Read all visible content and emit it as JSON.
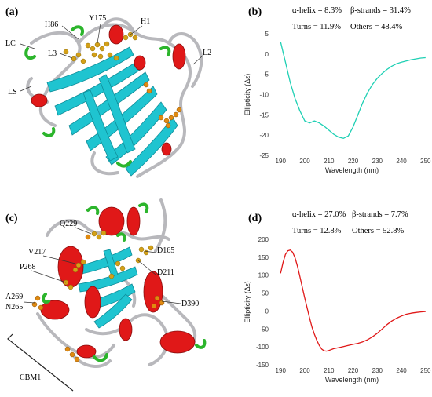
{
  "panels": {
    "a": {
      "letter": "(a)"
    },
    "b": {
      "letter": "(b)"
    },
    "c": {
      "letter": "(c)"
    },
    "d": {
      "letter": "(d)"
    }
  },
  "structure_a_labels": [
    "H86",
    "Y175",
    "H1",
    "LC",
    "L3",
    "L2",
    "LS"
  ],
  "structure_c_labels": [
    "Q229",
    "D165",
    "V217",
    "D211",
    "P268",
    "D390",
    "A269",
    "N265",
    "CBM1"
  ],
  "colors": {
    "helix": "#e01818",
    "strand": "#1fc4d0",
    "turn": "#2cb52c",
    "coil": "#b8b8bc",
    "residue": "#d4a017",
    "residue_alt": "#e08a10",
    "cd_b": "#1fd0b4",
    "cd_d": "#e01818"
  },
  "chart_data": [
    {
      "type": "line",
      "panel": "(b)",
      "annotations": [
        "α-helix = 8.3%",
        "β-strands = 31.4%",
        "Turns = 11.9%",
        "Others = 48.4%"
      ],
      "xlabel": "Wavelength (nm)",
      "ylabel": "Ellipticity (Δε)",
      "xlim": [
        187,
        252
      ],
      "ylim": [
        -25,
        5
      ],
      "xticks": [
        190,
        200,
        210,
        220,
        230,
        240,
        250
      ],
      "yticks": [
        5,
        0,
        -5,
        -10,
        -15,
        -20,
        -25
      ],
      "series": [
        {
          "x": [
            190,
            192,
            194,
            196,
            198,
            200,
            202,
            204,
            206,
            208,
            210,
            212,
            214,
            216,
            218,
            220,
            222,
            224,
            226,
            228,
            230,
            232,
            234,
            236,
            238,
            240,
            244,
            248,
            250
          ],
          "y": [
            3,
            -2,
            -7,
            -11,
            -14,
            -16.5,
            -17,
            -16.5,
            -17,
            -17.8,
            -18.8,
            -19.8,
            -20.5,
            -20.8,
            -20.2,
            -18,
            -15,
            -12,
            -9.5,
            -7.5,
            -6,
            -4.8,
            -3.8,
            -3,
            -2.4,
            -2,
            -1.4,
            -1,
            -0.9
          ]
        }
      ]
    },
    {
      "type": "line",
      "panel": "(d)",
      "annotations": [
        "α-helix = 27.0%",
        "β-strands = 7.7%",
        "Turns = 12.8%",
        "Others = 52.8%"
      ],
      "xlabel": "Wavelength (nm)",
      "ylabel": "Ellipticity (Δε)",
      "xlim": [
        187,
        252
      ],
      "ylim": [
        -150,
        200
      ],
      "xticks": [
        190,
        200,
        210,
        220,
        230,
        240,
        250
      ],
      "yticks": [
        200,
        150,
        100,
        50,
        0,
        -50,
        -100,
        -150
      ],
      "series": [
        {
          "x": [
            190,
            191,
            192,
            193,
            194,
            195,
            196,
            197,
            198,
            199,
            200,
            201,
            202,
            203,
            204,
            205,
            206,
            207,
            208,
            209,
            210,
            212,
            214,
            216,
            218,
            220,
            222,
            224,
            226,
            228,
            230,
            232,
            234,
            236,
            238,
            240,
            242,
            244,
            246,
            248,
            250
          ],
          "y": [
            105,
            135,
            158,
            168,
            170,
            164,
            148,
            124,
            96,
            66,
            36,
            8,
            -20,
            -45,
            -65,
            -82,
            -96,
            -106,
            -111,
            -112,
            -110,
            -105,
            -102,
            -99,
            -96,
            -93,
            -90,
            -86,
            -80,
            -72,
            -62,
            -50,
            -38,
            -28,
            -20,
            -14,
            -9,
            -6,
            -4,
            -2.5,
            -1.5
          ]
        }
      ]
    }
  ]
}
